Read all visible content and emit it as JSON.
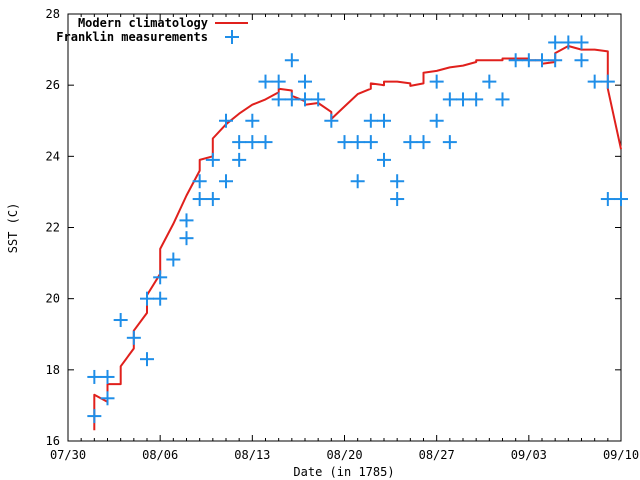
{
  "chart_data": {
    "type": "scatter",
    "xlabel": "Date (in 1785)",
    "ylabel": "SST (C)",
    "xlim": [
      "1785-07-30",
      "1785-09-10"
    ],
    "ylim": [
      16,
      28
    ],
    "x_ticks": [
      {
        "date": "1785-07-30",
        "label": "07/30"
      },
      {
        "date": "1785-08-06",
        "label": "08/06"
      },
      {
        "date": "1785-08-13",
        "label": "08/13"
      },
      {
        "date": "1785-08-20",
        "label": "08/20"
      },
      {
        "date": "1785-08-27",
        "label": "08/27"
      },
      {
        "date": "1785-09-03",
        "label": "09/03"
      },
      {
        "date": "1785-09-10",
        "label": "09/10"
      }
    ],
    "y_ticks": [
      16,
      18,
      20,
      22,
      24,
      26,
      28
    ],
    "grid": false,
    "legend_position": "top-left",
    "series": [
      {
        "name": "Modern climatology",
        "kind": "line",
        "color": "#e0201c",
        "points": [
          [
            "1785-08-01",
            16.3
          ],
          [
            "1785-08-01",
            17.3
          ],
          [
            "1785-08-02",
            17.1
          ],
          [
            "1785-08-02",
            17.6
          ],
          [
            "1785-08-03",
            17.6
          ],
          [
            "1785-08-03",
            18.1
          ],
          [
            "1785-08-04",
            18.6
          ],
          [
            "1785-08-04",
            19.1
          ],
          [
            "1785-08-05",
            19.6
          ],
          [
            "1785-08-05",
            20.1
          ],
          [
            "1785-08-06",
            20.7
          ],
          [
            "1785-08-06",
            21.4
          ],
          [
            "1785-08-07",
            22.1
          ],
          [
            "1785-08-08",
            22.9
          ],
          [
            "1785-08-09",
            23.6
          ],
          [
            "1785-08-09",
            23.9
          ],
          [
            "1785-08-10",
            24.0
          ],
          [
            "1785-08-10",
            24.5
          ],
          [
            "1785-08-11",
            24.9
          ],
          [
            "1785-08-12",
            25.2
          ],
          [
            "1785-08-13",
            25.45
          ],
          [
            "1785-08-14",
            25.6
          ],
          [
            "1785-08-15",
            25.8
          ],
          [
            "1785-08-15",
            25.9
          ],
          [
            "1785-08-16",
            25.85
          ],
          [
            "1785-08-16",
            25.7
          ],
          [
            "1785-08-17",
            25.55
          ],
          [
            "1785-08-17",
            25.45
          ],
          [
            "1785-08-18",
            25.5
          ],
          [
            "1785-08-19",
            25.25
          ],
          [
            "1785-08-19",
            25.05
          ],
          [
            "1785-08-20",
            25.4
          ],
          [
            "1785-08-21",
            25.75
          ],
          [
            "1785-08-22",
            25.9
          ],
          [
            "1785-08-22",
            26.05
          ],
          [
            "1785-08-23",
            26.0
          ],
          [
            "1785-08-23",
            26.1
          ],
          [
            "1785-08-24",
            26.1
          ],
          [
            "1785-08-25",
            26.05
          ],
          [
            "1785-08-25",
            25.98
          ],
          [
            "1785-08-26",
            26.05
          ],
          [
            "1785-08-26",
            26.35
          ],
          [
            "1785-08-27",
            26.4
          ],
          [
            "1785-08-28",
            26.5
          ],
          [
            "1785-08-29",
            26.55
          ],
          [
            "1785-08-30",
            26.65
          ],
          [
            "1785-08-30",
            26.7
          ],
          [
            "1785-09-01",
            26.7
          ],
          [
            "1785-09-01",
            26.75
          ],
          [
            "1785-09-03",
            26.75
          ],
          [
            "1785-09-03",
            26.7
          ],
          [
            "1785-09-04",
            26.7
          ],
          [
            "1785-09-04",
            26.6
          ],
          [
            "1785-09-05",
            26.65
          ],
          [
            "1785-09-05",
            26.9
          ],
          [
            "1785-09-06",
            27.1
          ],
          [
            "1785-09-07",
            27.0
          ],
          [
            "1785-09-08",
            27.0
          ],
          [
            "1785-09-09",
            26.95
          ],
          [
            "1785-09-09",
            25.9
          ],
          [
            "1785-09-10",
            24.2
          ]
        ]
      },
      {
        "name": "Franklin measurements",
        "kind": "scatter",
        "color": "#1f8ee8",
        "points": [
          [
            "1785-08-01",
            16.7
          ],
          [
            "1785-08-01",
            17.8
          ],
          [
            "1785-08-02",
            17.2
          ],
          [
            "1785-08-02",
            17.8
          ],
          [
            "1785-08-03",
            19.4
          ],
          [
            "1785-08-04",
            18.9
          ],
          [
            "1785-08-05",
            18.3
          ],
          [
            "1785-08-05",
            20.0
          ],
          [
            "1785-08-06",
            20.0
          ],
          [
            "1785-08-06",
            20.6
          ],
          [
            "1785-08-07",
            21.1
          ],
          [
            "1785-08-08",
            21.7
          ],
          [
            "1785-08-08",
            22.2
          ],
          [
            "1785-08-09",
            22.8
          ],
          [
            "1785-08-09",
            23.3
          ],
          [
            "1785-08-10",
            22.8
          ],
          [
            "1785-08-10",
            23.9
          ],
          [
            "1785-08-11",
            23.3
          ],
          [
            "1785-08-11",
            25.0
          ],
          [
            "1785-08-12",
            23.9
          ],
          [
            "1785-08-12",
            24.4
          ],
          [
            "1785-08-13",
            24.4
          ],
          [
            "1785-08-13",
            25.0
          ],
          [
            "1785-08-14",
            24.4
          ],
          [
            "1785-08-14",
            26.1
          ],
          [
            "1785-08-15",
            25.6
          ],
          [
            "1785-08-15",
            26.1
          ],
          [
            "1785-08-16",
            25.6
          ],
          [
            "1785-08-16",
            26.7
          ],
          [
            "1785-08-17",
            25.6
          ],
          [
            "1785-08-17",
            26.1
          ],
          [
            "1785-08-18",
            25.6
          ],
          [
            "1785-08-19",
            25.0
          ],
          [
            "1785-08-20",
            24.4
          ],
          [
            "1785-08-21",
            23.3
          ],
          [
            "1785-08-21",
            24.4
          ],
          [
            "1785-08-22",
            24.4
          ],
          [
            "1785-08-22",
            25.0
          ],
          [
            "1785-08-23",
            23.9
          ],
          [
            "1785-08-23",
            25.0
          ],
          [
            "1785-08-24",
            22.8
          ],
          [
            "1785-08-24",
            23.3
          ],
          [
            "1785-08-25",
            24.4
          ],
          [
            "1785-08-26",
            24.4
          ],
          [
            "1785-08-27",
            25.0
          ],
          [
            "1785-08-27",
            26.1
          ],
          [
            "1785-08-28",
            24.4
          ],
          [
            "1785-08-28",
            25.6
          ],
          [
            "1785-08-29",
            25.6
          ],
          [
            "1785-08-30",
            25.6
          ],
          [
            "1785-08-31",
            26.1
          ],
          [
            "1785-09-01",
            25.6
          ],
          [
            "1785-09-02",
            26.7
          ],
          [
            "1785-09-03",
            26.7
          ],
          [
            "1785-09-04",
            26.7
          ],
          [
            "1785-09-05",
            26.7
          ],
          [
            "1785-09-05",
            27.2
          ],
          [
            "1785-09-06",
            27.2
          ],
          [
            "1785-09-07",
            26.7
          ],
          [
            "1785-09-07",
            27.2
          ],
          [
            "1785-09-08",
            26.1
          ],
          [
            "1785-09-09",
            22.8
          ],
          [
            "1785-09-09",
            26.1
          ],
          [
            "1785-09-10",
            22.8
          ]
        ]
      }
    ]
  }
}
